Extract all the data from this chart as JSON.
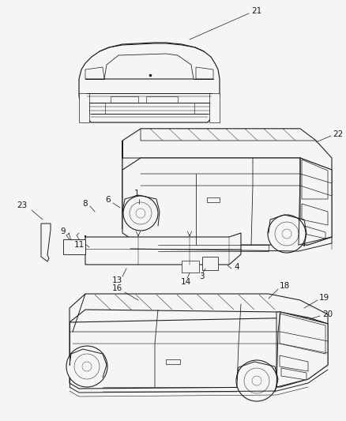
{
  "bg_color": "#f5f5f5",
  "line_color": "#1a1a1a",
  "label_color": "#1a1a1a",
  "fig_width": 4.39,
  "fig_height": 5.33,
  "dpi": 100,
  "label_fs": 7.5,
  "lw": 0.7
}
